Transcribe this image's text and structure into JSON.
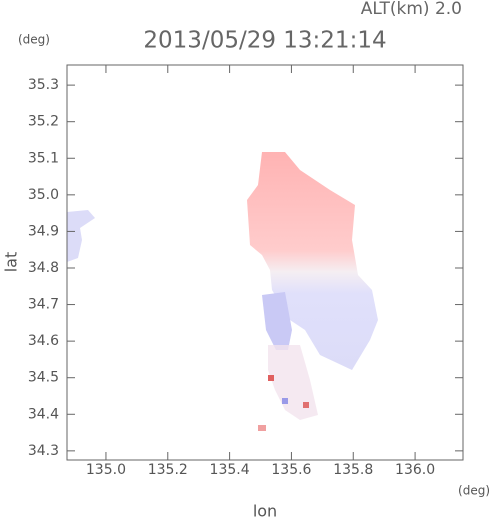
{
  "header": {
    "altitude": "ALT(km) 2.0",
    "y_unit": "(deg)",
    "x_unit": "(deg)"
  },
  "chart_data": {
    "type": "map",
    "title": "2013/05/29 13:21:14",
    "x_label": "lon",
    "y_label": "lat",
    "xlim": [
      134.874,
      136.155
    ],
    "ylim": [
      34.275,
      35.355
    ],
    "xticks": [
      {
        "value": 135,
        "label": "135.0"
      },
      135.2,
      135.4,
      135.6,
      135.8,
      {
        "value": 136,
        "label": "136.0"
      }
    ],
    "yticks": [
      34.3,
      34.4,
      34.5,
      34.6,
      34.7,
      34.8,
      34.9,
      {
        "value": 35,
        "label": "35.0"
      },
      35.1,
      35.2,
      35.3
    ]
  }
}
